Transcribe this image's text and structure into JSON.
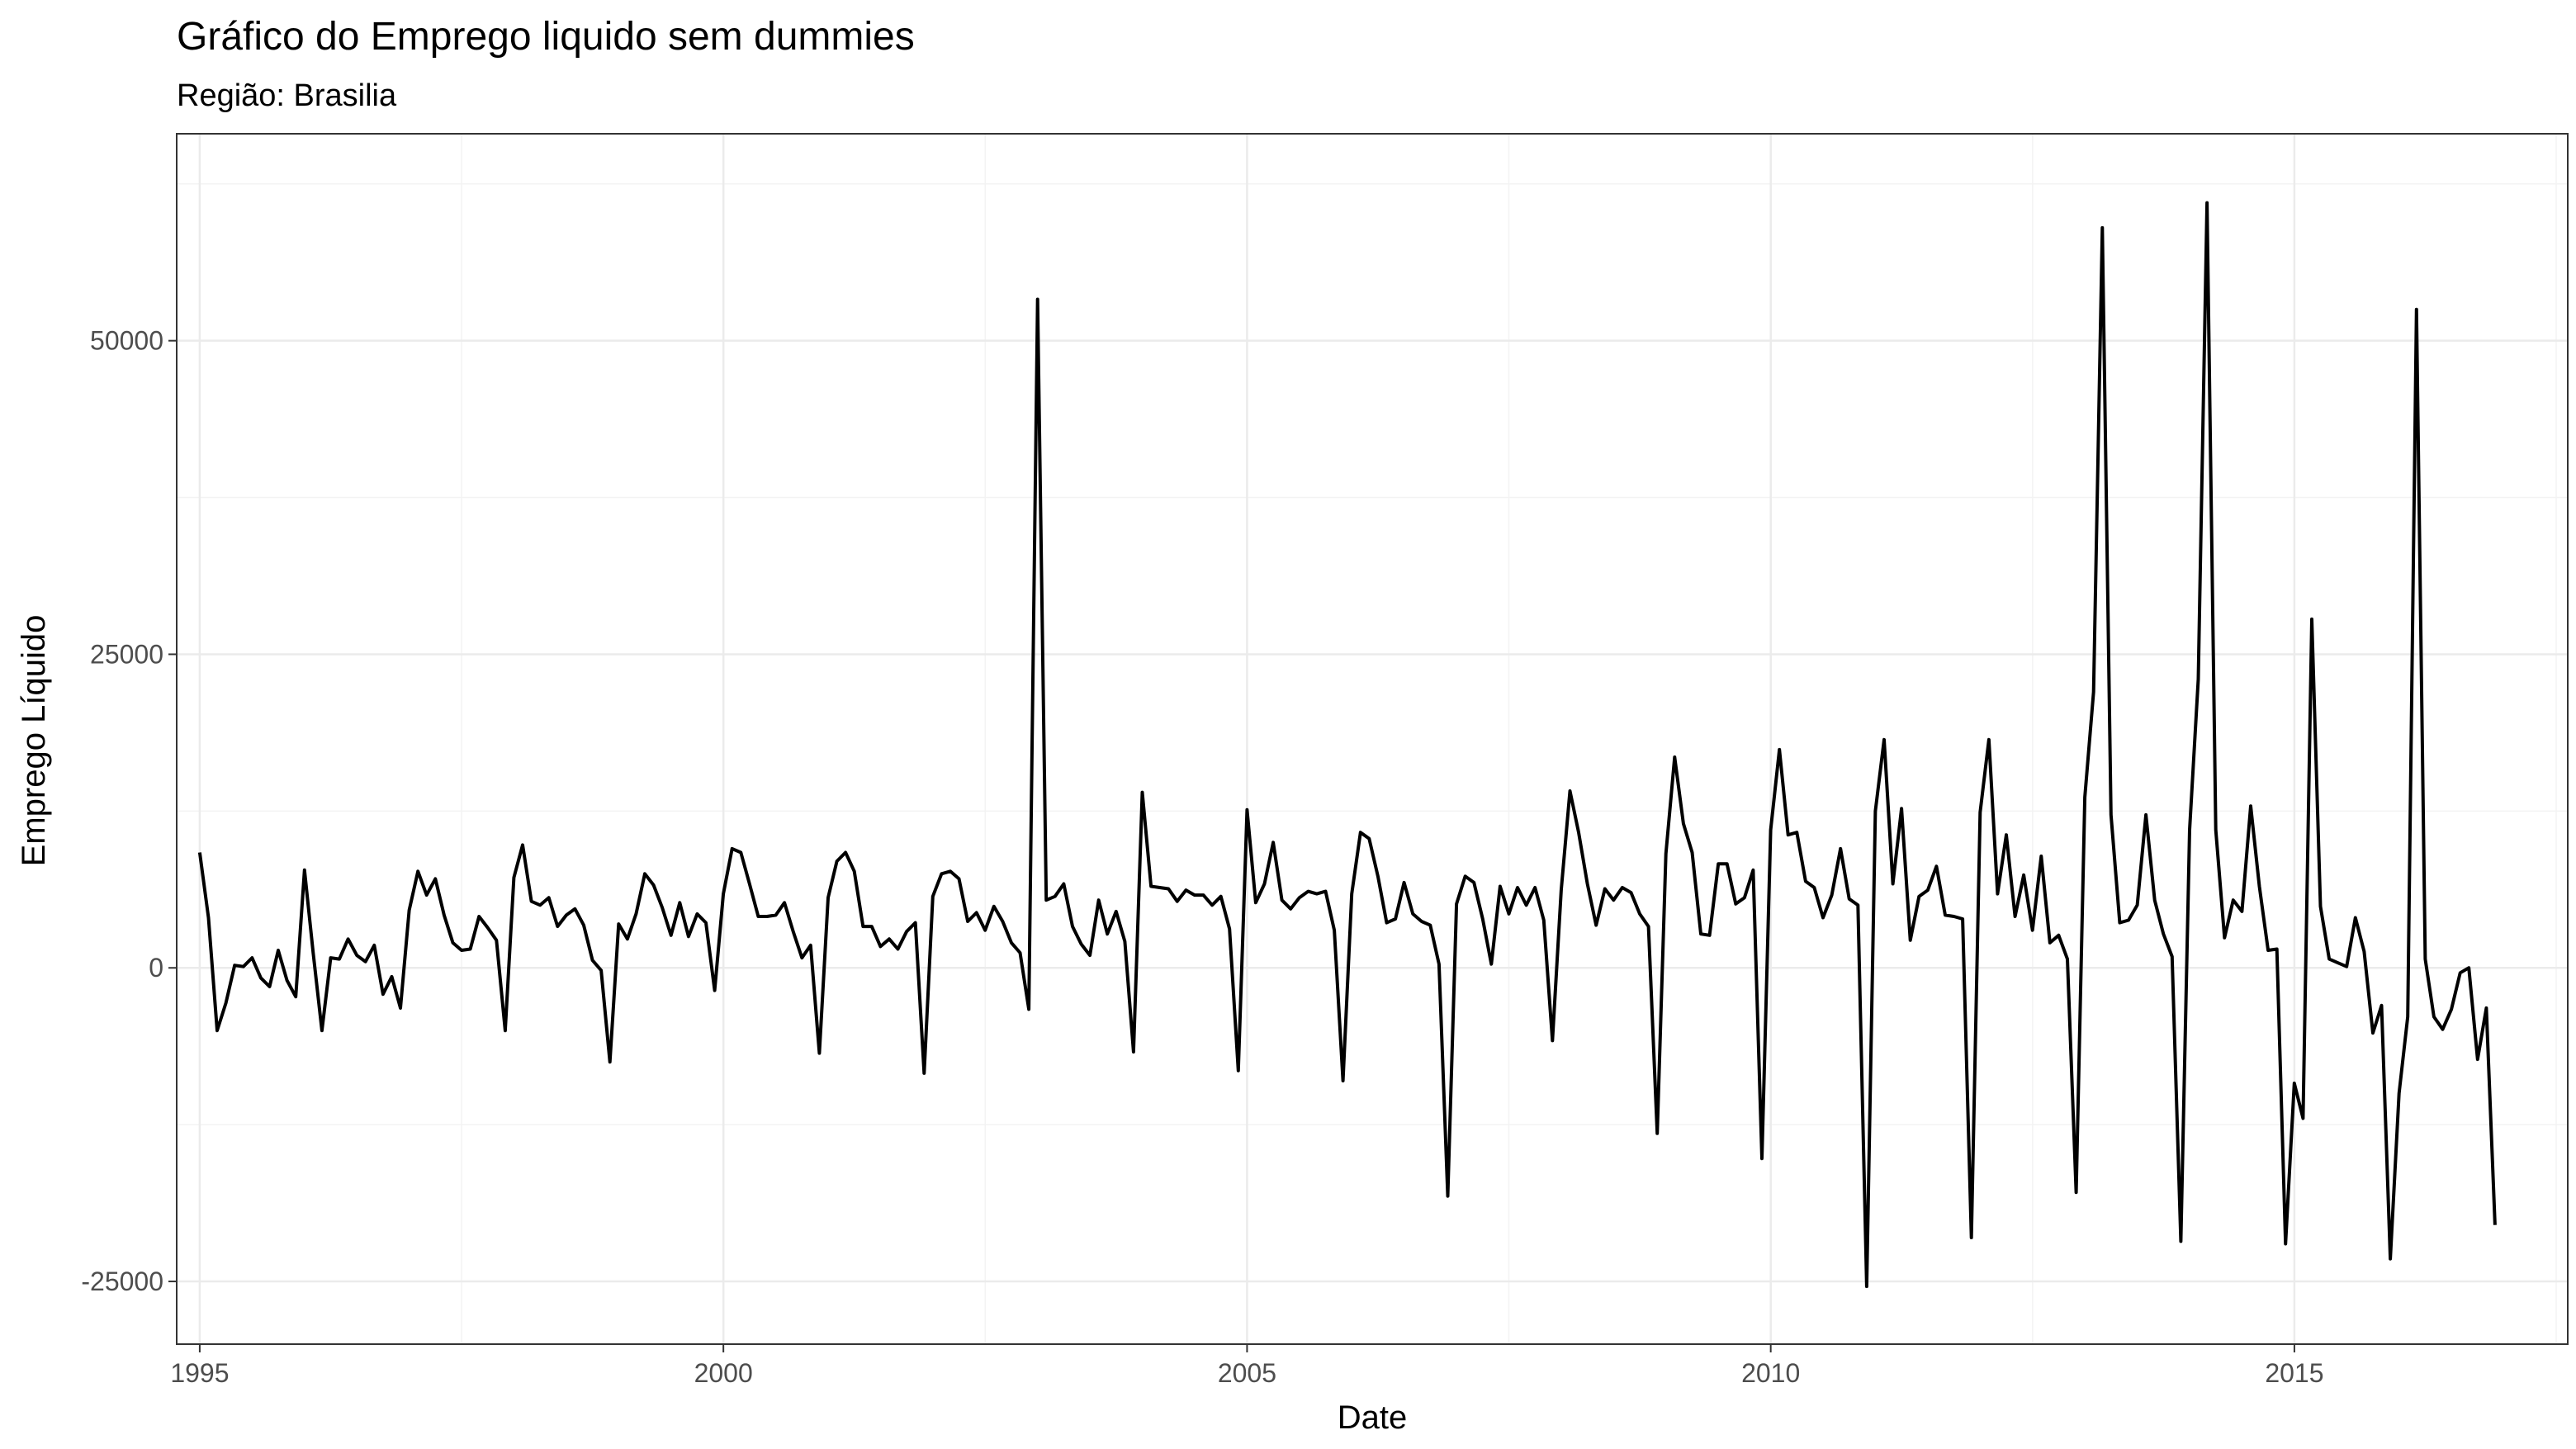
{
  "chart_data": {
    "type": "line",
    "title": "Gráfico do Emprego liquido sem dummies",
    "subtitle": "Região: Brasilia",
    "xlabel": "Date",
    "ylabel": "Emprego Líquido",
    "xlim": [
      1994.78,
      2017.61
    ],
    "ylim": [
      -30000,
      66500
    ],
    "x_ticks": [
      1995,
      2000,
      2005,
      2010,
      2015
    ],
    "y_ticks": [
      -25000,
      0,
      25000,
      50000
    ],
    "x_tick_labels": [
      "1995",
      "2000",
      "2005",
      "2010",
      "2015"
    ],
    "y_tick_labels": [
      "-25000",
      "0",
      "25000",
      "50000"
    ],
    "grid": true,
    "legend": "none",
    "line_color": "#000000",
    "series": [
      {
        "start": 1995.0,
        "step": 0.08333,
        "values": [
          9200,
          4000,
          -5000,
          -2800,
          200,
          100,
          800,
          -800,
          -1500,
          1400,
          -1000,
          -2300,
          7800,
          1200,
          -5000,
          800,
          700,
          2300,
          1000,
          500,
          1800,
          -2100,
          -700,
          -3200,
          4600,
          7700,
          5800,
          7100,
          4200,
          2000,
          1400,
          1500,
          4100,
          3200,
          2200,
          -5000,
          7200,
          9800,
          5300,
          5000,
          5600,
          3300,
          4200,
          4700,
          3400,
          600,
          -200,
          -7500,
          3500,
          2300,
          4300,
          7500,
          6600,
          4800,
          2600,
          5200,
          2500,
          4300,
          3600,
          -1800,
          5900,
          9500,
          9200,
          6700,
          4100,
          4100,
          4200,
          5200,
          2900,
          800,
          1800,
          -6800,
          5600,
          8500,
          9200,
          7700,
          3300,
          3300,
          1700,
          2300,
          1500,
          2900,
          3600,
          -8400,
          5700,
          7500,
          7700,
          7100,
          3700,
          4400,
          3000,
          4900,
          3700,
          2000,
          1200,
          -3300,
          53300,
          5400,
          5700,
          6700,
          3300,
          1900,
          1000,
          5400,
          2700,
          4500,
          2100,
          -6700,
          14000,
          6500,
          6400,
          6300,
          5300,
          6200,
          5800,
          5800,
          5000,
          5700,
          3100,
          -8200,
          12600,
          5200,
          6700,
          10000,
          5400,
          4700,
          5600,
          6100,
          5900,
          6100,
          3000,
          -9000,
          5900,
          10800,
          10300,
          7300,
          3600,
          3900,
          6800,
          4300,
          3700,
          3400,
          300,
          -18200,
          5100,
          7300,
          6800,
          3900,
          300,
          6500,
          4300,
          6400,
          5000,
          6400,
          3800,
          -5800,
          6200,
          14100,
          10800,
          6700,
          3400,
          6300,
          5400,
          6400,
          6000,
          4300,
          3300,
          -13200,
          9100,
          16800,
          11500,
          9200,
          2700,
          2600,
          8300,
          8300,
          5100,
          5600,
          7800,
          -15200,
          11000,
          17400,
          10600,
          10800,
          6900,
          6400,
          4000,
          5800,
          9500,
          5500,
          5000,
          -25400,
          12500,
          18200,
          6700,
          12700,
          2200,
          5700,
          6200,
          8100,
          4200,
          4100,
          3900,
          -21500,
          12400,
          18200,
          5900,
          10600,
          4100,
          7400,
          3000,
          8900,
          2000,
          2600,
          700,
          -17900,
          13600,
          22000,
          59000,
          12200,
          3600,
          3800,
          5000,
          12200,
          5400,
          2700,
          900,
          -21800,
          11000,
          23000,
          61000,
          11000,
          2400,
          5400,
          4500,
          12900,
          6500,
          1400,
          1500,
          -22000,
          -9200,
          -12000,
          27800,
          4900,
          700,
          400,
          100,
          4000,
          1300,
          -5200,
          -3000,
          -23200,
          -10000,
          -3900,
          52500,
          700,
          -3900,
          -4900,
          -3300,
          -400,
          0,
          -7300,
          -3200,
          -20500
        ]
      }
    ]
  }
}
